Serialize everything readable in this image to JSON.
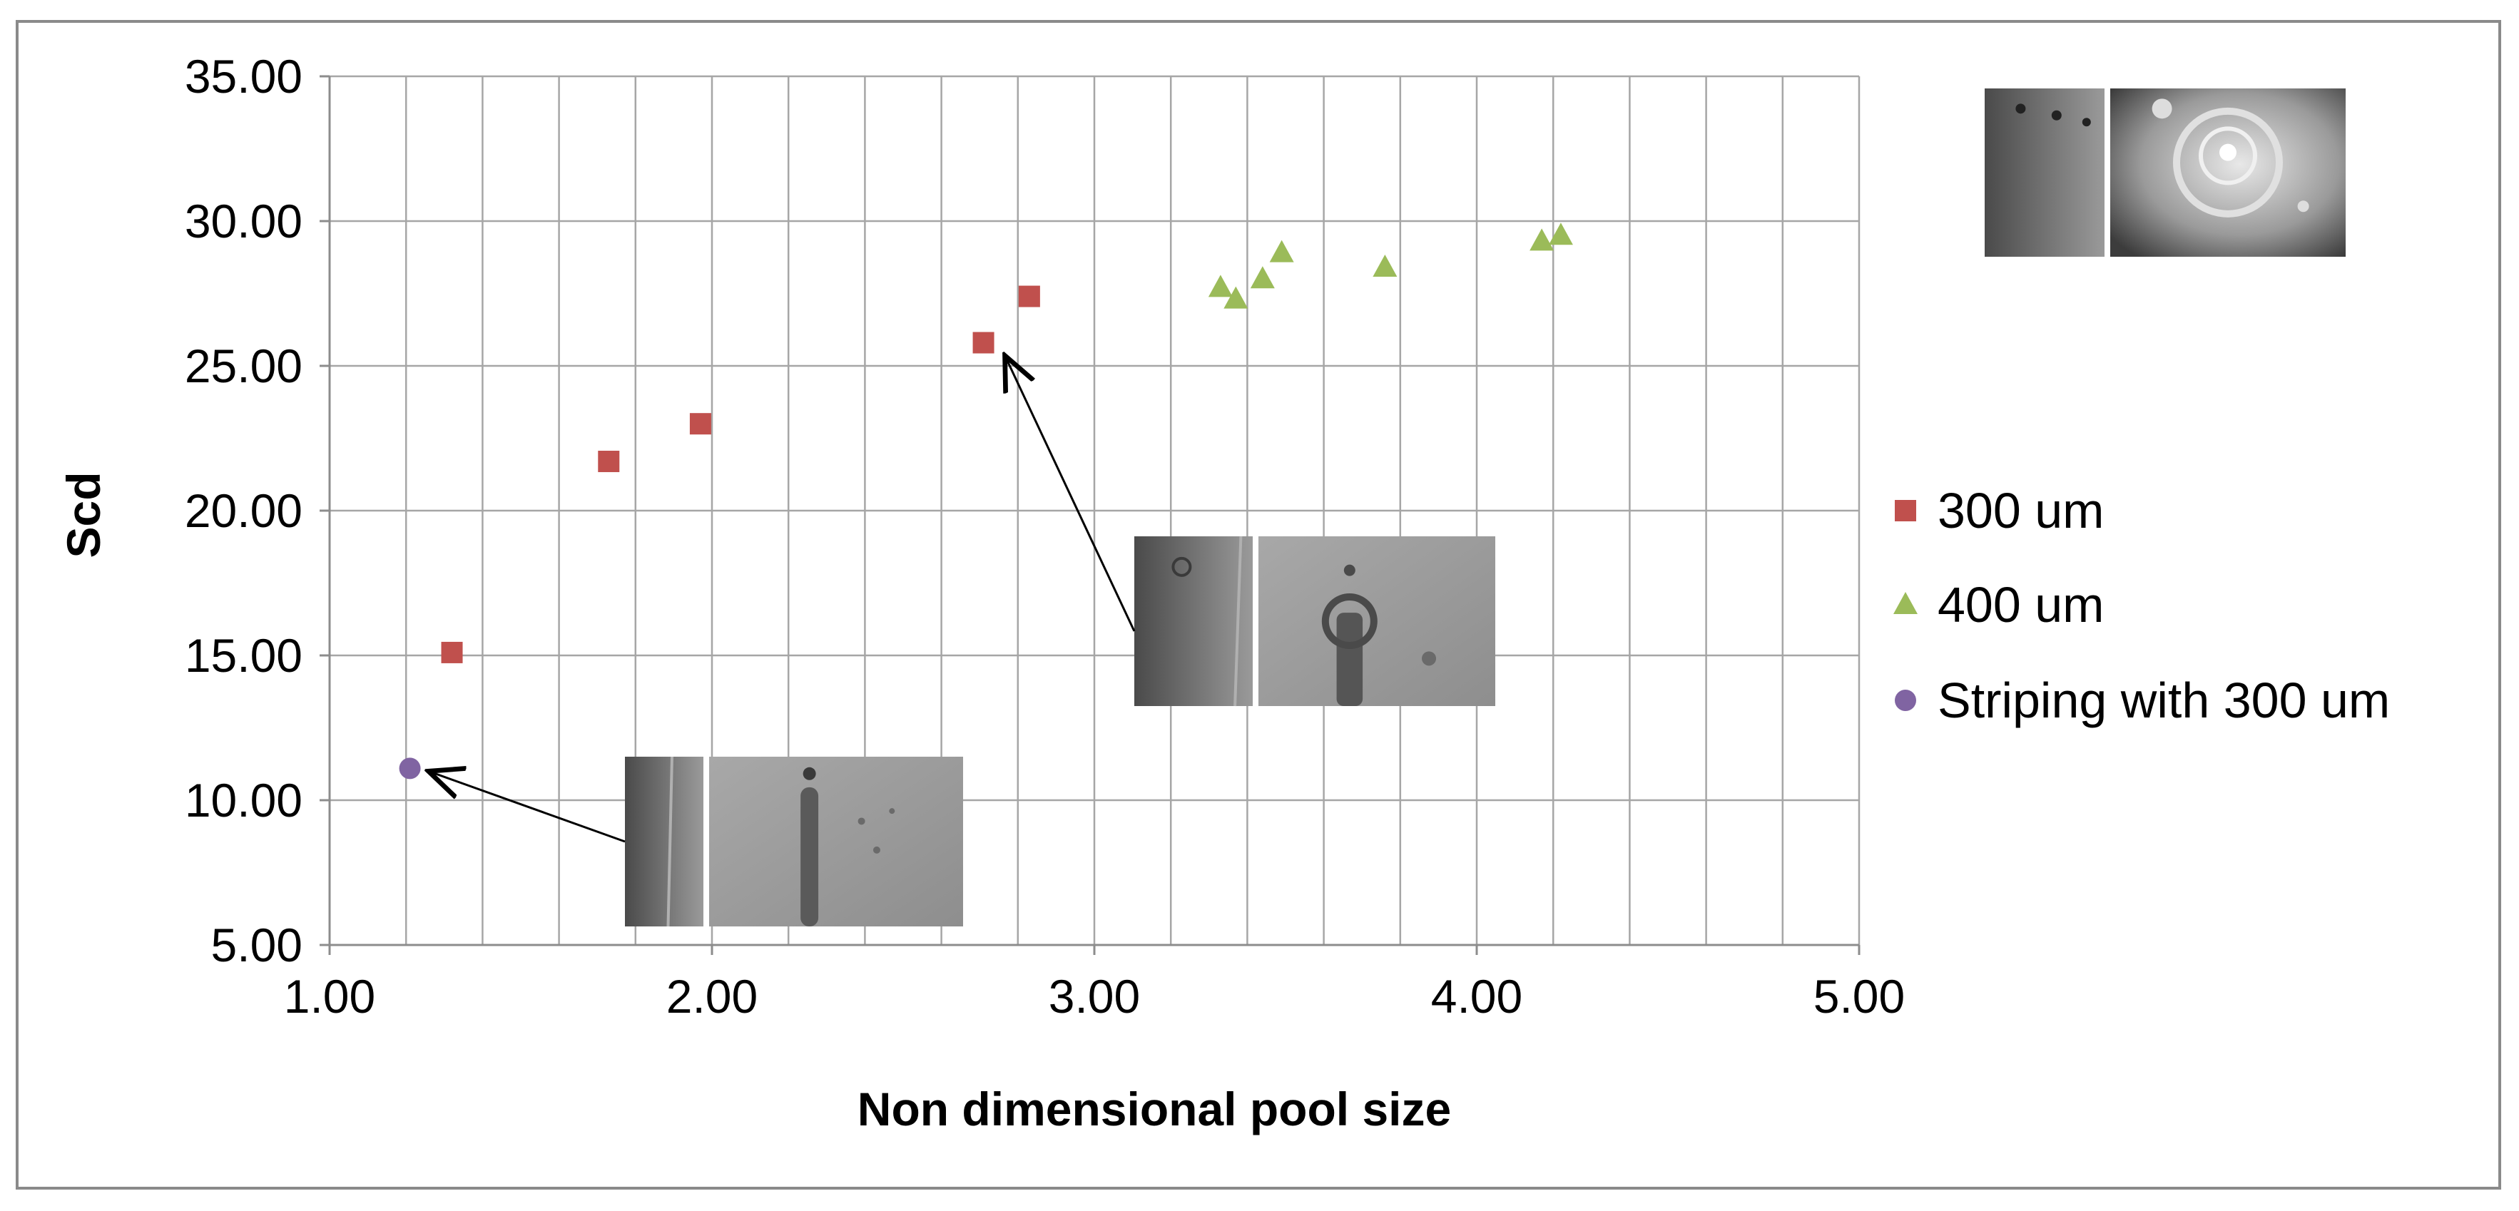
{
  "chart_data": {
    "type": "scatter",
    "title": "",
    "xlabel": "Non dimensional pool size",
    "ylabel": "Scd",
    "xlim": [
      1.0,
      5.0
    ],
    "ylim": [
      5.0,
      35.0
    ],
    "x_ticks": [
      "1.00",
      "2.00",
      "3.00",
      "4.00",
      "5.00"
    ],
    "y_ticks": [
      "5.00",
      "10.00",
      "15.00",
      "20.00",
      "25.00",
      "30.00",
      "35.00"
    ],
    "x_minor_step": 0.2,
    "grid": true,
    "legend_position": "right",
    "series": [
      {
        "name": "300 um",
        "marker": "square",
        "color": "#c0504d",
        "points": [
          {
            "x": 1.32,
            "y": 15.1
          },
          {
            "x": 1.73,
            "y": 21.7
          },
          {
            "x": 1.97,
            "y": 23.0
          },
          {
            "x": 2.71,
            "y": 25.8
          },
          {
            "x": 2.83,
            "y": 27.4
          }
        ]
      },
      {
        "name": "400 um",
        "marker": "triangle",
        "color": "#9bbb59",
        "points": [
          {
            "x": 3.33,
            "y": 27.7
          },
          {
            "x": 3.37,
            "y": 27.3
          },
          {
            "x": 3.44,
            "y": 28.0
          },
          {
            "x": 3.49,
            "y": 28.9
          },
          {
            "x": 3.76,
            "y": 28.4
          },
          {
            "x": 4.17,
            "y": 29.3
          },
          {
            "x": 4.22,
            "y": 29.5
          }
        ]
      },
      {
        "name": "Striping with 300 um",
        "marker": "circle",
        "color": "#8064a2",
        "points": [
          {
            "x": 1.21,
            "y": 11.1
          }
        ]
      }
    ],
    "annotations": [
      {
        "type": "photo-inset",
        "target": {
          "x": 1.21,
          "y": 11.1
        }
      },
      {
        "type": "photo-inset",
        "target": {
          "x": 2.71,
          "y": 25.8
        }
      },
      {
        "type": "photo-inset",
        "target": null
      }
    ]
  }
}
